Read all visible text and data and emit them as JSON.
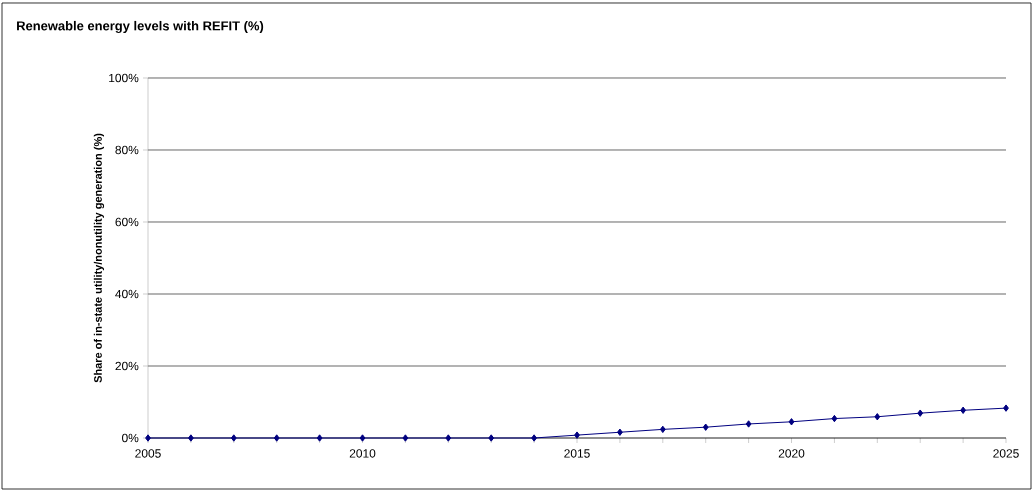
{
  "chart_data": {
    "type": "line",
    "title": "Renewable energy levels with REFIT (%)",
    "ylabel": "Share of in-state utility/nonutility generation (%)",
    "x": [
      2005,
      2006,
      2007,
      2008,
      2009,
      2010,
      2011,
      2012,
      2013,
      2014,
      2015,
      2016,
      2017,
      2018,
      2019,
      2020,
      2021,
      2022,
      2023,
      2024,
      2025
    ],
    "series": [
      {
        "color": "#000080",
        "values": [
          0,
          0,
          0,
          0,
          0,
          0,
          0,
          0,
          0,
          0,
          0.8,
          1.6,
          2.4,
          3.0,
          3.9,
          4.5,
          5.4,
          5.9,
          6.9,
          7.7,
          8.3
        ]
      }
    ],
    "xlim": [
      2005,
      2025
    ],
    "xticks": [
      2005,
      {
        "value": 2006,
        "label": null
      },
      {
        "value": 2007,
        "label": null
      },
      {
        "value": 2008,
        "label": null
      },
      {
        "value": 2009,
        "label": null
      },
      2010,
      {
        "value": 2011,
        "label": null
      },
      {
        "value": 2012,
        "label": null
      },
      {
        "value": 2013,
        "label": null
      },
      {
        "value": 2014,
        "label": null
      },
      2015,
      {
        "value": 2016,
        "label": null
      },
      {
        "value": 2017,
        "label": null
      },
      {
        "value": 2018,
        "label": null
      },
      {
        "value": 2019,
        "label": null
      },
      2020,
      {
        "value": 2021,
        "label": null
      },
      {
        "value": 2022,
        "label": null
      },
      {
        "value": 2023,
        "label": null
      },
      {
        "value": 2024,
        "label": null
      },
      2025
    ],
    "ylim": [
      0,
      100
    ],
    "yticks": [
      {
        "value": 0,
        "label": "0%"
      },
      {
        "value": 20,
        "label": "20%"
      },
      {
        "value": 40,
        "label": "40%"
      },
      {
        "value": 60,
        "label": "60%"
      },
      {
        "value": 80,
        "label": "80%"
      },
      {
        "value": 100,
        "label": "100%"
      }
    ],
    "grid": "y",
    "marker": "diamond",
    "line_style": "solid"
  }
}
